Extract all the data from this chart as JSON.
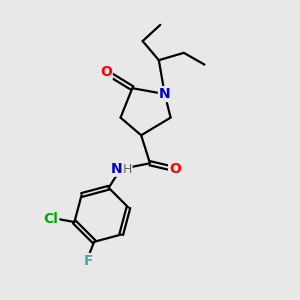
{
  "background_color": "#e8e8e8",
  "bond_color": "#000000",
  "atom_colors": {
    "O": "#ff0000",
    "N": "#0000cc",
    "Cl": "#00aa00",
    "F": "#44aaaa",
    "H": "#666666"
  },
  "font_size_atom": 10,
  "fig_size": [
    3.0,
    3.0
  ],
  "dpi": 100
}
